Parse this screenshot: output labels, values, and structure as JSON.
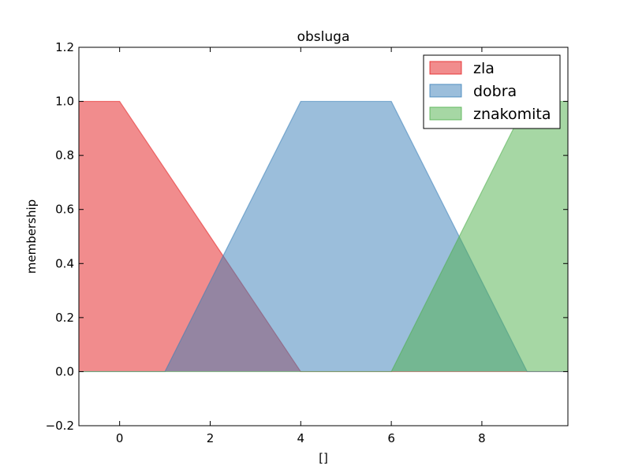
{
  "chart_data": {
    "type": "area",
    "title": "obsluga",
    "xlabel": "[]",
    "ylabel": "membership",
    "xlim": [
      -0.9,
      9.9
    ],
    "ylim": [
      -0.2,
      1.2
    ],
    "xticks": [
      0,
      2,
      4,
      6,
      8
    ],
    "yticks": [
      -0.2,
      0.0,
      0.2,
      0.4,
      0.6,
      0.8,
      1.0,
      1.2
    ],
    "xtick_labels": [
      "0",
      "2",
      "4",
      "6",
      "8"
    ],
    "ytick_labels": [
      "−0.2",
      "0.0",
      "0.2",
      "0.4",
      "0.6",
      "0.8",
      "1.0",
      "1.2"
    ],
    "grid": false,
    "legend": "top-right",
    "series": [
      {
        "name": "zla",
        "color": "#e41a1c",
        "x": [
          -0.9,
          0,
          4,
          9.9
        ],
        "y": [
          1,
          1,
          0,
          0
        ]
      },
      {
        "name": "dobra",
        "color": "#377eb8",
        "x": [
          -0.9,
          1,
          4,
          6,
          9,
          9.9
        ],
        "y": [
          0,
          0,
          1,
          1,
          0,
          0
        ]
      },
      {
        "name": "znakomita",
        "color": "#4daf4a",
        "x": [
          -0.9,
          6,
          9,
          9.9
        ],
        "y": [
          0,
          0,
          1,
          1
        ]
      }
    ]
  }
}
